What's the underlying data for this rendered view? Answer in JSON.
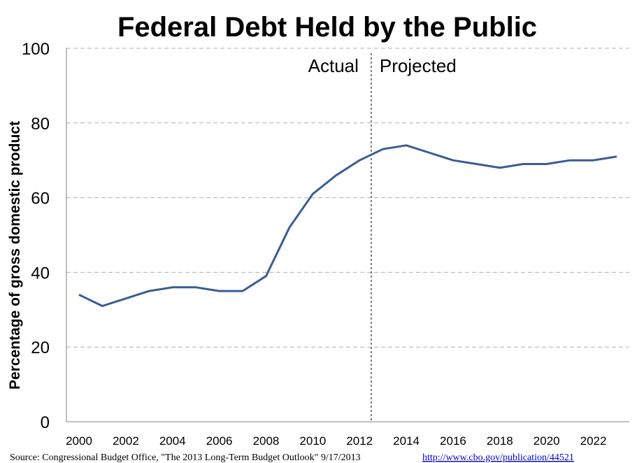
{
  "chart_data": {
    "type": "line",
    "title": "Federal Debt Held by the Public",
    "xlabel": "",
    "ylabel": "Percentage of gross domestic product",
    "ylim": [
      0,
      100
    ],
    "xlim": [
      2000,
      2023
    ],
    "y_ticks": [
      0,
      20,
      40,
      60,
      80,
      100
    ],
    "x_ticks": [
      2000,
      2002,
      2004,
      2006,
      2008,
      2010,
      2012,
      2014,
      2016,
      2018,
      2020,
      2022
    ],
    "grid": "horizontal dashed",
    "legend": "none",
    "series": [
      {
        "x": [
          2000,
          2001,
          2002,
          2003,
          2004,
          2005,
          2006,
          2007,
          2008,
          2009,
          2010,
          2011,
          2012,
          2013,
          2014,
          2015,
          2016,
          2017,
          2018,
          2019,
          2020,
          2021,
          2022,
          2023
        ],
        "values": [
          34,
          31,
          33,
          35,
          36,
          36,
          35,
          35,
          39,
          52,
          61,
          66,
          70,
          73,
          74,
          72,
          70,
          69,
          68,
          69,
          69,
          70,
          70,
          71
        ],
        "color": "#3a5d92"
      }
    ],
    "divider": {
      "x": 2012.5,
      "left_label": "Actual",
      "right_label": "Projected"
    }
  },
  "footer": {
    "source": "Source:  Congressional  Budget Office, \"The 2013 Long-Term Budget Outlook\" 9/17/2013",
    "link": "http://www.cbo.gov/publication/44521"
  },
  "colors": {
    "line": "#3a5d92",
    "grid": "#b0b0b0",
    "link": "#0000cc"
  }
}
